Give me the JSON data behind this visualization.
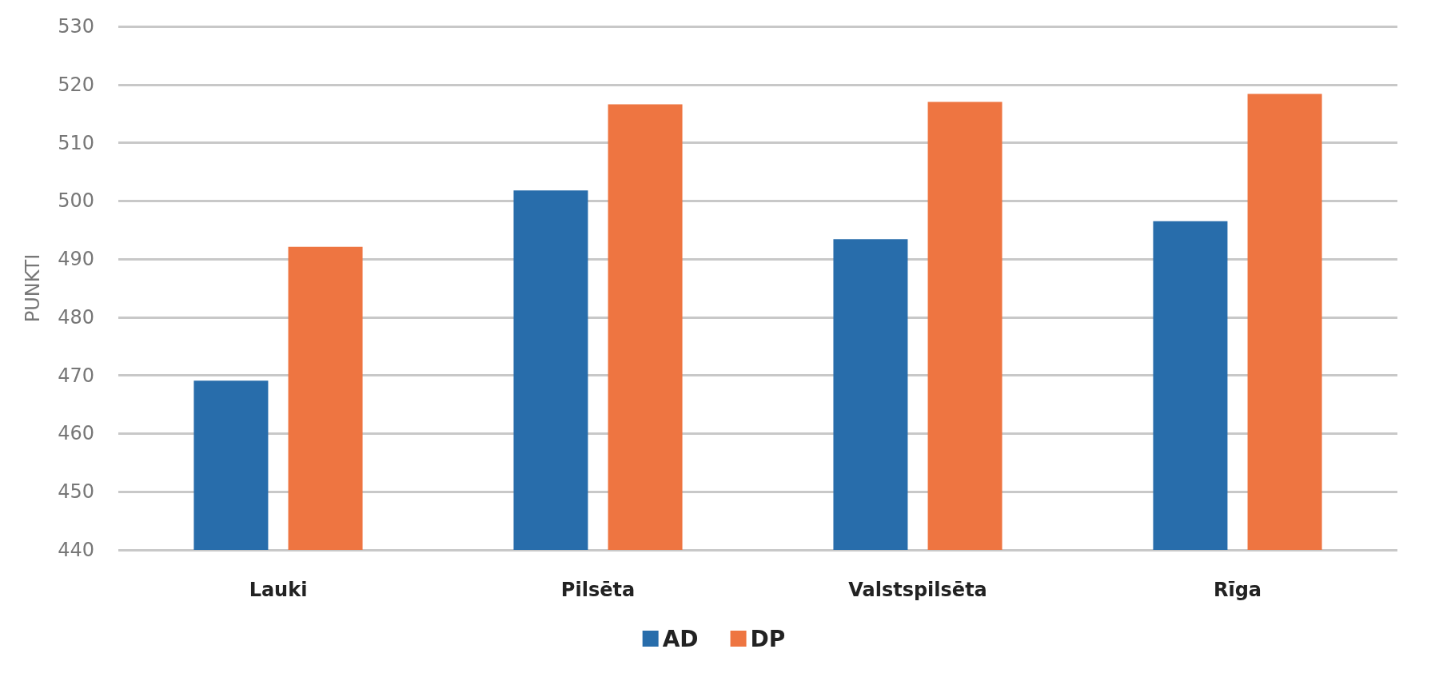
{
  "chart_data": {
    "type": "bar",
    "ylabel": "PUNKTI",
    "categories": [
      "Lauki",
      "Pilsēta",
      "Valstspilsēta",
      "Rīga"
    ],
    "series": [
      {
        "name": "AD",
        "color": "#286dab",
        "values": [
          469.1,
          501.8,
          493.4,
          496.5
        ]
      },
      {
        "name": "DP",
        "color": "#ee7541",
        "values": [
          492.1,
          516.6,
          517.0,
          518.4
        ]
      }
    ],
    "ylim": [
      440,
      530
    ],
    "yticks": [
      440,
      450,
      460,
      470,
      480,
      490,
      500,
      510,
      520,
      530
    ],
    "grid": "y",
    "legend": "bottom"
  }
}
